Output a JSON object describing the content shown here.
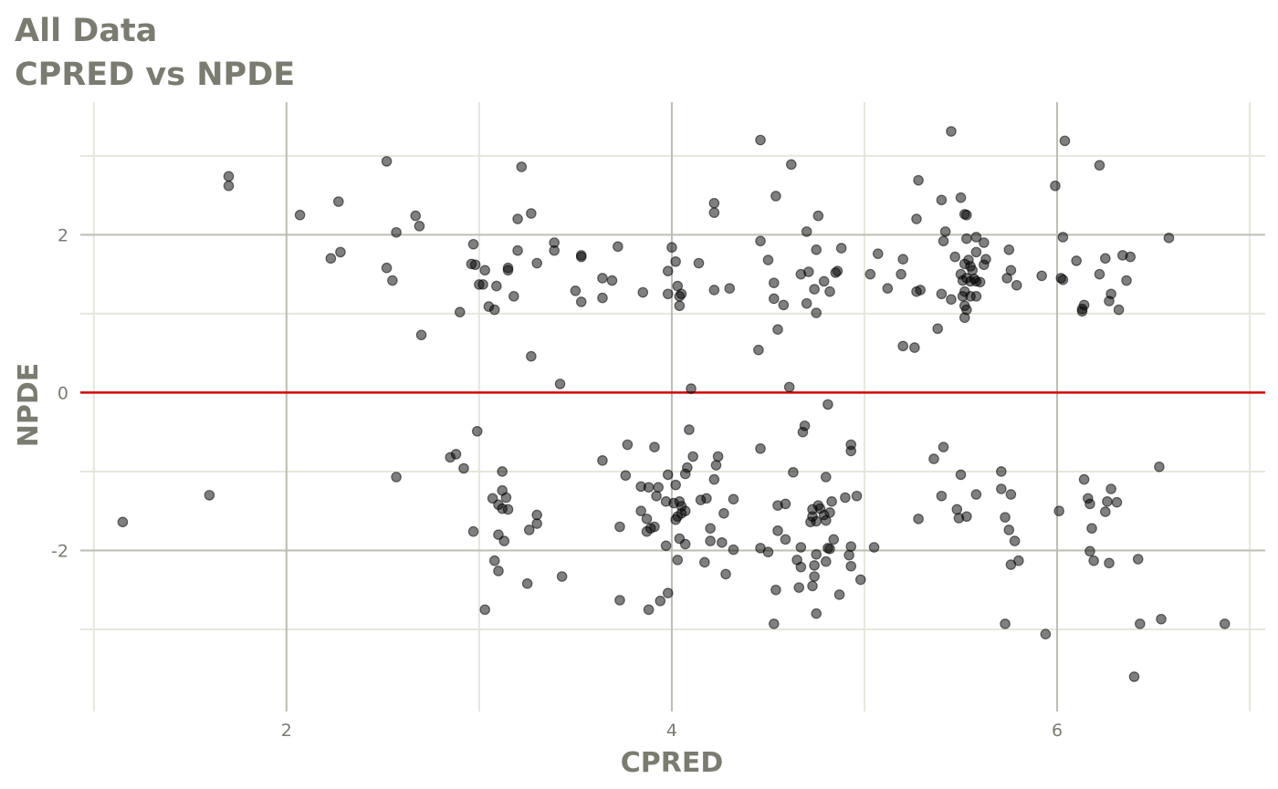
{
  "chart_data": {
    "type": "scatter",
    "title": "All Data",
    "subtitle": "CPRED vs NPDE",
    "xlabel": "CPRED",
    "ylabel": "NPDE",
    "xlim": [
      0.93,
      7.08
    ],
    "ylim": [
      -4.04,
      3.68
    ],
    "x_ticks": [
      2,
      4,
      6
    ],
    "x_tick_labels": [
      "2",
      "4",
      "6"
    ],
    "y_ticks": [
      -2,
      0,
      2
    ],
    "y_tick_labels": [
      "-2",
      "0",
      "2"
    ],
    "x_minor_grid": [
      1,
      3,
      5,
      7
    ],
    "y_minor_grid": [
      -3,
      -1,
      1,
      3
    ],
    "grid": true,
    "reference_line": {
      "y": 0,
      "color": "#d40000"
    },
    "point_color": "#000000",
    "point_opacity": 0.5,
    "colors": {
      "title": "#7b7b70",
      "grid_major": "#bdbdb2",
      "grid_minor": "#e6e6dc"
    },
    "points": [
      [
        1.7,
        2.74
      ],
      [
        1.7,
        2.62
      ],
      [
        2.52,
        2.93
      ],
      [
        3.22,
        2.86
      ],
      [
        3.27,
        2.27
      ],
      [
        3.2,
        2.2
      ],
      [
        2.67,
        2.24
      ],
      [
        2.69,
        2.11
      ],
      [
        2.27,
        2.42
      ],
      [
        2.07,
        2.25
      ],
      [
        2.57,
        2.03
      ],
      [
        2.23,
        1.7
      ],
      [
        2.28,
        1.78
      ],
      [
        2.52,
        1.58
      ],
      [
        2.55,
        1.42
      ],
      [
        2.97,
        1.88
      ],
      [
        2.96,
        1.63
      ],
      [
        2.98,
        1.62
      ],
      [
        3.03,
        1.55
      ],
      [
        3.15,
        1.58
      ],
      [
        3.15,
        1.55
      ],
      [
        3.2,
        1.8
      ],
      [
        3.3,
        1.64
      ],
      [
        3.0,
        1.37
      ],
      [
        3.02,
        1.37
      ],
      [
        3.09,
        1.35
      ],
      [
        3.18,
        1.22
      ],
      [
        3.05,
        1.09
      ],
      [
        3.08,
        1.05
      ],
      [
        2.9,
        1.02
      ],
      [
        2.7,
        0.73
      ],
      [
        3.27,
        0.46
      ],
      [
        3.42,
        0.11
      ],
      [
        3.39,
        1.9
      ],
      [
        3.39,
        1.8
      ],
      [
        3.53,
        1.74
      ],
      [
        3.53,
        1.72
      ],
      [
        3.72,
        1.85
      ],
      [
        3.64,
        1.45
      ],
      [
        3.69,
        1.42
      ],
      [
        3.5,
        1.29
      ],
      [
        3.53,
        1.15
      ],
      [
        3.64,
        1.2
      ],
      [
        3.85,
        1.27
      ],
      [
        3.98,
        1.25
      ],
      [
        4.0,
        1.84
      ],
      [
        3.98,
        1.54
      ],
      [
        4.02,
        1.66
      ],
      [
        4.03,
        1.35
      ],
      [
        4.05,
        1.25
      ],
      [
        4.04,
        1.22
      ],
      [
        4.04,
        1.1
      ],
      [
        4.14,
        1.64
      ],
      [
        4.1,
        0.05
      ],
      [
        4.22,
        2.4
      ],
      [
        4.22,
        2.28
      ],
      [
        4.22,
        1.3
      ],
      [
        4.3,
        1.32
      ],
      [
        4.46,
        3.2
      ],
      [
        4.62,
        2.89
      ],
      [
        4.54,
        2.49
      ],
      [
        4.46,
        1.92
      ],
      [
        4.5,
        1.68
      ],
      [
        4.53,
        1.39
      ],
      [
        4.53,
        1.19
      ],
      [
        4.58,
        1.11
      ],
      [
        4.55,
        0.8
      ],
      [
        4.45,
        0.54
      ],
      [
        4.61,
        0.07
      ],
      [
        4.76,
        2.24
      ],
      [
        4.7,
        2.04
      ],
      [
        4.75,
        1.81
      ],
      [
        4.71,
        1.53
      ],
      [
        4.67,
        1.5
      ],
      [
        4.74,
        1.31
      ],
      [
        4.79,
        1.41
      ],
      [
        4.82,
        1.28
      ],
      [
        4.7,
        1.13
      ],
      [
        4.75,
        1.01
      ],
      [
        4.85,
        1.52
      ],
      [
        4.86,
        1.54
      ],
      [
        4.88,
        1.83
      ],
      [
        5.03,
        1.5
      ],
      [
        5.07,
        1.76
      ],
      [
        5.12,
        1.32
      ],
      [
        5.2,
        1.69
      ],
      [
        5.19,
        1.5
      ],
      [
        5.2,
        0.59
      ],
      [
        5.26,
        0.57
      ],
      [
        5.28,
        2.69
      ],
      [
        5.27,
        2.2
      ],
      [
        5.27,
        1.28
      ],
      [
        5.29,
        1.3
      ],
      [
        5.45,
        3.31
      ],
      [
        5.4,
        2.44
      ],
      [
        5.42,
        2.04
      ],
      [
        5.41,
        1.92
      ],
      [
        5.4,
        1.25
      ],
      [
        5.45,
        1.18
      ],
      [
        5.38,
        0.81
      ],
      [
        5.5,
        2.47
      ],
      [
        5.52,
        2.26
      ],
      [
        5.53,
        2.25
      ],
      [
        5.53,
        1.95
      ],
      [
        5.58,
        1.97
      ],
      [
        5.62,
        1.9
      ],
      [
        5.58,
        1.78
      ],
      [
        5.47,
        1.72
      ],
      [
        5.54,
        1.68
      ],
      [
        5.52,
        1.63
      ],
      [
        5.55,
        1.6
      ],
      [
        5.56,
        1.55
      ],
      [
        5.5,
        1.5
      ],
      [
        5.53,
        1.45
      ],
      [
        5.57,
        1.44
      ],
      [
        5.51,
        1.42
      ],
      [
        5.55,
        1.41
      ],
      [
        5.58,
        1.41
      ],
      [
        5.6,
        1.4
      ],
      [
        5.63,
        1.69
      ],
      [
        5.62,
        1.62
      ],
      [
        5.52,
        1.28
      ],
      [
        5.55,
        1.22
      ],
      [
        5.51,
        1.22
      ],
      [
        5.58,
        1.22
      ],
      [
        5.52,
        1.1
      ],
      [
        5.53,
        1.05
      ],
      [
        5.52,
        0.95
      ],
      [
        5.75,
        1.81
      ],
      [
        5.76,
        1.55
      ],
      [
        5.74,
        1.45
      ],
      [
        5.79,
        1.36
      ],
      [
        5.92,
        1.48
      ],
      [
        5.99,
        2.62
      ],
      [
        6.04,
        3.19
      ],
      [
        6.03,
        1.97
      ],
      [
        6.02,
        1.45
      ],
      [
        6.03,
        1.43
      ],
      [
        6.1,
        1.67
      ],
      [
        6.13,
        1.06
      ],
      [
        6.13,
        1.03
      ],
      [
        6.14,
        1.11
      ],
      [
        6.22,
        2.88
      ],
      [
        6.25,
        1.7
      ],
      [
        6.22,
        1.5
      ],
      [
        6.28,
        1.25
      ],
      [
        6.27,
        1.16
      ],
      [
        6.34,
        1.74
      ],
      [
        6.38,
        1.72
      ],
      [
        6.36,
        1.42
      ],
      [
        6.32,
        1.05
      ],
      [
        6.58,
        1.96
      ],
      [
        1.15,
        -1.64
      ],
      [
        1.6,
        -1.3
      ],
      [
        2.57,
        -1.07
      ],
      [
        2.85,
        -0.82
      ],
      [
        2.88,
        -0.78
      ],
      [
        2.92,
        -0.96
      ],
      [
        2.99,
        -0.49
      ],
      [
        3.12,
        -1.0
      ],
      [
        3.07,
        -1.34
      ],
      [
        3.12,
        -1.24
      ],
      [
        3.14,
        -1.33
      ],
      [
        3.1,
        -1.42
      ],
      [
        3.15,
        -1.48
      ],
      [
        3.12,
        -1.47
      ],
      [
        2.97,
        -1.76
      ],
      [
        3.1,
        -1.8
      ],
      [
        3.13,
        -1.88
      ],
      [
        3.08,
        -2.13
      ],
      [
        3.1,
        -2.26
      ],
      [
        3.03,
        -2.75
      ],
      [
        3.26,
        -1.74
      ],
      [
        3.3,
        -1.55
      ],
      [
        3.3,
        -1.66
      ],
      [
        3.25,
        -2.42
      ],
      [
        3.43,
        -2.33
      ],
      [
        3.64,
        -0.86
      ],
      [
        3.77,
        -0.66
      ],
      [
        3.76,
        -1.05
      ],
      [
        3.84,
        -1.19
      ],
      [
        3.88,
        -1.2
      ],
      [
        3.93,
        -1.2
      ],
      [
        3.92,
        -1.31
      ],
      [
        3.84,
        -1.5
      ],
      [
        3.87,
        -1.6
      ],
      [
        3.89,
        -1.72
      ],
      [
        3.87,
        -1.76
      ],
      [
        3.91,
        -1.7
      ],
      [
        3.73,
        -1.7
      ],
      [
        3.91,
        -0.69
      ],
      [
        3.98,
        -1.04
      ],
      [
        3.97,
        -1.38
      ],
      [
        4.01,
        -1.4
      ],
      [
        4.02,
        -1.17
      ],
      [
        4.04,
        -1.38
      ],
      [
        4.05,
        -1.44
      ],
      [
        4.05,
        -1.53
      ],
      [
        4.03,
        -1.57
      ],
      [
        4.02,
        -1.61
      ],
      [
        4.07,
        -1.5
      ],
      [
        4.07,
        -1.03
      ],
      [
        4.08,
        -0.95
      ],
      [
        4.09,
        -0.47
      ],
      [
        4.11,
        -0.81
      ],
      [
        4.15,
        -1.36
      ],
      [
        4.18,
        -1.34
      ],
      [
        4.2,
        -1.72
      ],
      [
        4.2,
        -1.88
      ],
      [
        4.17,
        -2.15
      ],
      [
        3.97,
        -1.94
      ],
      [
        4.04,
        -1.85
      ],
      [
        4.07,
        -1.92
      ],
      [
        4.03,
        -2.12
      ],
      [
        3.98,
        -2.54
      ],
      [
        3.94,
        -2.64
      ],
      [
        3.88,
        -2.75
      ],
      [
        3.73,
        -2.63
      ],
      [
        4.23,
        -0.92
      ],
      [
        4.24,
        -0.81
      ],
      [
        4.22,
        -1.1
      ],
      [
        4.27,
        -1.53
      ],
      [
        4.32,
        -1.35
      ],
      [
        4.26,
        -1.9
      ],
      [
        4.32,
        -1.99
      ],
      [
        4.28,
        -2.3
      ],
      [
        4.46,
        -0.71
      ],
      [
        4.46,
        -1.97
      ],
      [
        4.5,
        -2.02
      ],
      [
        4.55,
        -1.43
      ],
      [
        4.59,
        -1.41
      ],
      [
        4.55,
        -1.75
      ],
      [
        4.59,
        -1.86
      ],
      [
        4.54,
        -2.5
      ],
      [
        4.53,
        -2.93
      ],
      [
        4.63,
        -1.01
      ],
      [
        4.68,
        -0.5
      ],
      [
        4.69,
        -0.42
      ],
      [
        4.73,
        -1.48
      ],
      [
        4.73,
        -1.57
      ],
      [
        4.72,
        -1.64
      ],
      [
        4.76,
        -1.43
      ],
      [
        4.77,
        -1.47
      ],
      [
        4.79,
        -1.55
      ],
      [
        4.75,
        -1.63
      ],
      [
        4.82,
        -1.52
      ],
      [
        4.8,
        -1.62
      ],
      [
        4.83,
        -1.38
      ],
      [
        4.8,
        -1.07
      ],
      [
        4.81,
        -0.15
      ],
      [
        4.67,
        -1.96
      ],
      [
        4.65,
        -2.12
      ],
      [
        4.67,
        -2.21
      ],
      [
        4.75,
        -2.05
      ],
      [
        4.74,
        -2.19
      ],
      [
        4.74,
        -2.33
      ],
      [
        4.73,
        -2.45
      ],
      [
        4.66,
        -2.47
      ],
      [
        4.75,
        -2.8
      ],
      [
        4.8,
        -2.14
      ],
      [
        4.82,
        -1.98
      ],
      [
        4.81,
        -1.97
      ],
      [
        4.84,
        -1.86
      ],
      [
        4.87,
        -2.56
      ],
      [
        4.9,
        -1.33
      ],
      [
        4.93,
        -0.74
      ],
      [
        4.93,
        -0.66
      ],
      [
        4.96,
        -1.31
      ],
      [
        4.93,
        -1.95
      ],
      [
        4.92,
        -2.06
      ],
      [
        4.93,
        -2.2
      ],
      [
        4.98,
        -2.37
      ],
      [
        5.05,
        -1.96
      ],
      [
        5.28,
        -1.6
      ],
      [
        5.36,
        -0.84
      ],
      [
        5.41,
        -0.69
      ],
      [
        5.4,
        -1.31
      ],
      [
        5.48,
        -1.48
      ],
      [
        5.49,
        -1.59
      ],
      [
        5.5,
        -1.04
      ],
      [
        5.53,
        -1.57
      ],
      [
        5.58,
        -1.29
      ],
      [
        5.71,
        -1.0
      ],
      [
        5.71,
        -1.22
      ],
      [
        5.73,
        -1.58
      ],
      [
        5.76,
        -1.29
      ],
      [
        5.75,
        -1.74
      ],
      [
        5.78,
        -1.88
      ],
      [
        5.76,
        -2.18
      ],
      [
        5.8,
        -2.13
      ],
      [
        5.73,
        -2.93
      ],
      [
        5.94,
        -3.06
      ],
      [
        6.01,
        -1.5
      ],
      [
        6.14,
        -1.1
      ],
      [
        6.16,
        -1.34
      ],
      [
        6.17,
        -1.41
      ],
      [
        6.18,
        -1.72
      ],
      [
        6.17,
        -2.01
      ],
      [
        6.19,
        -2.13
      ],
      [
        6.25,
        -1.51
      ],
      [
        6.26,
        -1.38
      ],
      [
        6.28,
        -1.22
      ],
      [
        6.31,
        -1.39
      ],
      [
        6.27,
        -2.16
      ],
      [
        6.42,
        -2.11
      ],
      [
        6.53,
        -0.94
      ],
      [
        6.54,
        -2.87
      ],
      [
        6.43,
        -2.93
      ],
      [
        6.4,
        -3.6
      ],
      [
        6.87,
        -2.93
      ]
    ]
  }
}
